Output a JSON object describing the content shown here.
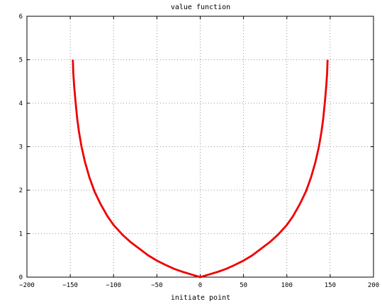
{
  "chart_data": {
    "type": "line",
    "title": "value function",
    "xlabel": "initiate point",
    "ylabel": "",
    "xlim": [
      -200,
      200
    ],
    "ylim": [
      0,
      6
    ],
    "xticks": [
      -200,
      -150,
      -100,
      -50,
      0,
      50,
      100,
      150,
      200
    ],
    "yticks": [
      0,
      1,
      2,
      3,
      4,
      5,
      6
    ],
    "xtick_labels": [
      "−200",
      "−150",
      "−100",
      "−50",
      "0",
      "50",
      "100",
      "150",
      "200"
    ],
    "ytick_labels": [
      "0",
      "1",
      "2",
      "3",
      "4",
      "5",
      "6"
    ],
    "grid": true,
    "series": [
      {
        "color": "#ee0000",
        "x": [
          -147,
          -146.5,
          -145.5,
          -144,
          -142,
          -140,
          -137,
          -133,
          -128,
          -122,
          -115,
          -107,
          -100,
          -90,
          -80,
          -70,
          -60,
          -50,
          -40,
          -30,
          -20,
          -10,
          0,
          10,
          20,
          30,
          40,
          50,
          60,
          70,
          80,
          90,
          100,
          107,
          115,
          122,
          128,
          133,
          137,
          140,
          142,
          144,
          145.5,
          146.5,
          147
        ],
        "y": [
          5.0,
          4.7,
          4.4,
          4.05,
          3.65,
          3.35,
          3.0,
          2.65,
          2.3,
          1.97,
          1.68,
          1.4,
          1.2,
          0.98,
          0.8,
          0.65,
          0.5,
          0.38,
          0.28,
          0.19,
          0.12,
          0.06,
          0.0,
          0.06,
          0.12,
          0.19,
          0.28,
          0.38,
          0.5,
          0.65,
          0.8,
          0.98,
          1.2,
          1.4,
          1.68,
          1.97,
          2.3,
          2.65,
          3.0,
          3.35,
          3.65,
          4.05,
          4.4,
          4.7,
          5.0
        ]
      }
    ]
  }
}
